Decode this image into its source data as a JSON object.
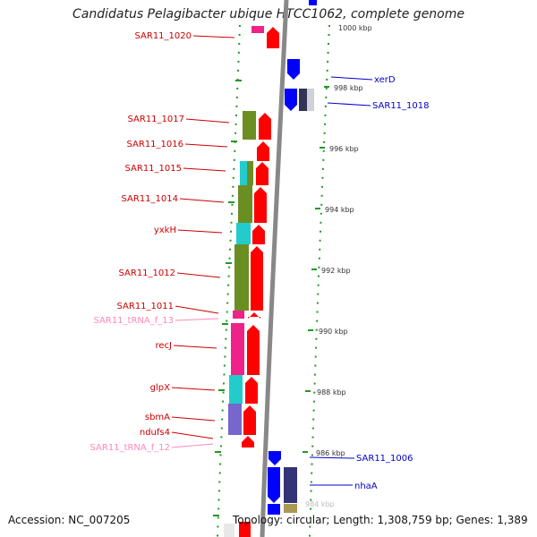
{
  "header": {
    "title": "Candidatus Pelagibacter ubique HTCC1062, complete genome"
  },
  "footer": {
    "accession": "Accession: NC_007205",
    "summary": "Topology: circular; Length: 1,308,759 bp; Genes: 1,389"
  },
  "colors": {
    "rna_gene": "#ff0000",
    "dna_gene": "#0000ff",
    "left_label": "#cc0000",
    "trna_label": "#ff88bb",
    "right_label": "#0000cc"
  },
  "scale": {
    "ticks": [
      "1000 kbp",
      "998 kbp",
      "996 kbp",
      "994 kbp",
      "992 kbp",
      "990 kbp",
      "988 kbp",
      "986 kbp",
      "984 kbp"
    ]
  },
  "left_labels": [
    {
      "text": "SAR11_1020",
      "kind": "gene"
    },
    {
      "text": "SAR11_1017",
      "kind": "gene"
    },
    {
      "text": "SAR11_1016",
      "kind": "gene"
    },
    {
      "text": "SAR11_1015",
      "kind": "gene"
    },
    {
      "text": "SAR11_1014",
      "kind": "gene"
    },
    {
      "text": "yxkH",
      "kind": "gene"
    },
    {
      "text": "SAR11_1012",
      "kind": "gene"
    },
    {
      "text": "SAR11_1011",
      "kind": "gene"
    },
    {
      "text": "SAR11_tRNA_f_13",
      "kind": "trna"
    },
    {
      "text": "recJ",
      "kind": "gene"
    },
    {
      "text": "glpX",
      "kind": "gene"
    },
    {
      "text": "sbmA",
      "kind": "gene"
    },
    {
      "text": "ndufs4",
      "kind": "gene"
    },
    {
      "text": "SAR11_tRNA_f_12",
      "kind": "trna"
    }
  ],
  "right_labels": [
    {
      "text": "xerD"
    },
    {
      "text": "SAR11_1018"
    },
    {
      "text": "SAR11_1006"
    },
    {
      "text": "nhaA"
    }
  ]
}
